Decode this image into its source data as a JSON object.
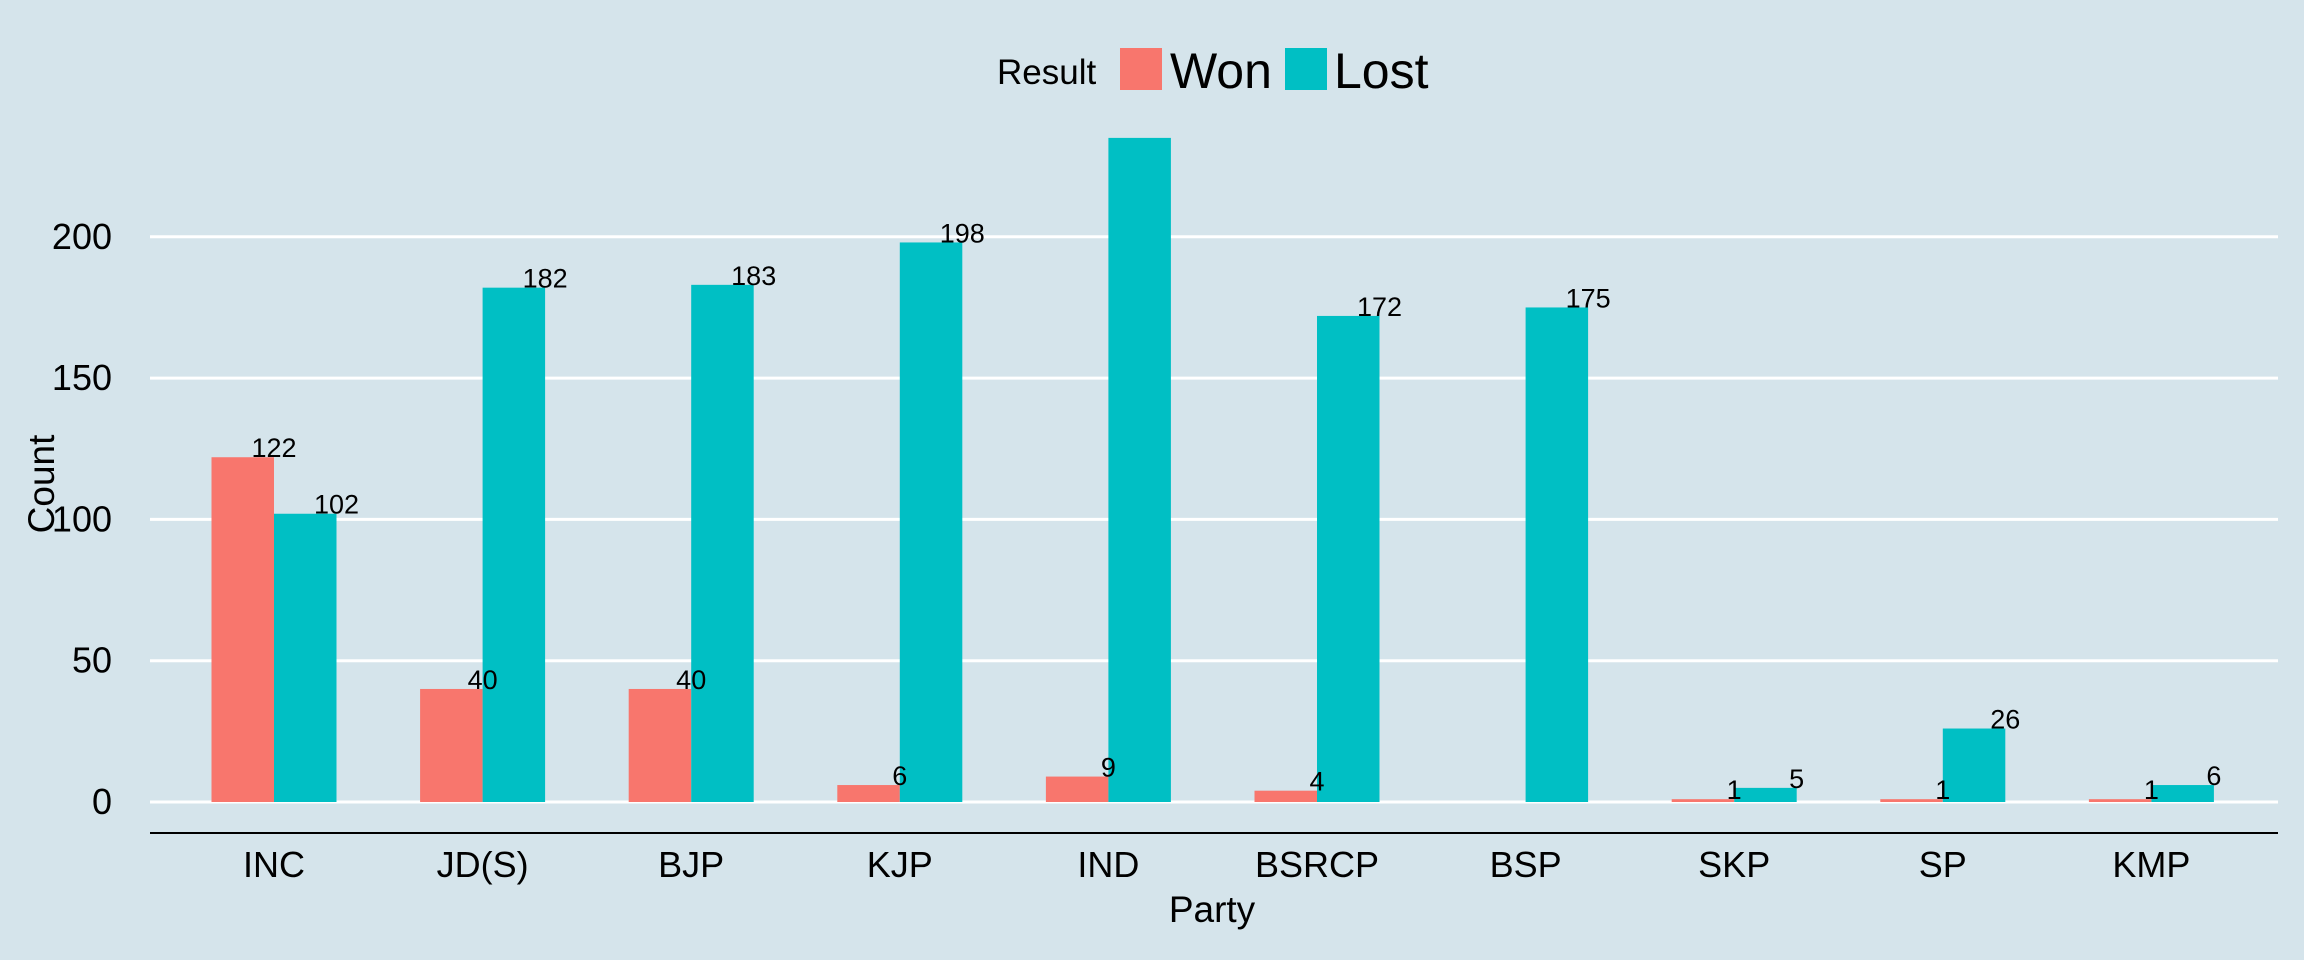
{
  "chart_data": {
    "type": "bar",
    "title": "",
    "xlabel": "Party",
    "ylabel": "Count",
    "ylim": [
      0,
      250
    ],
    "yticks": [
      0,
      50,
      100,
      150,
      200
    ],
    "grid": true,
    "legend": {
      "title": "Result",
      "position": "top"
    },
    "categories": [
      "INC",
      "JD(S)",
      "BJP",
      "KJP",
      "IND",
      "BSRCP",
      "BSP",
      "SKP",
      "SP",
      "KMP"
    ],
    "series": [
      {
        "name": "Won",
        "color": "#f8766d",
        "values": [
          122,
          40,
          40,
          6,
          9,
          4,
          0,
          1,
          1,
          1
        ],
        "labels": [
          "122",
          "40",
          "40",
          "6",
          "9",
          "4",
          "",
          "1",
          "1",
          "1"
        ]
      },
      {
        "name": "Lost",
        "color": "#00bfc4",
        "values": [
          102,
          182,
          183,
          198,
          235,
          172,
          175,
          5,
          26,
          6
        ],
        "labels": [
          "102",
          "182",
          "183",
          "198",
          "",
          "172",
          "175",
          "5",
          "26",
          "6"
        ]
      }
    ]
  }
}
